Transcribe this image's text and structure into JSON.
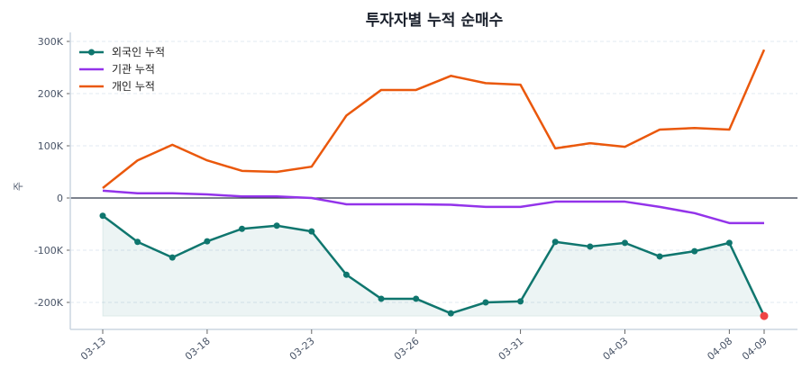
{
  "chart_data": {
    "type": "line",
    "title": "투자자별 누적 순매수",
    "xlabel": "",
    "ylabel": "주",
    "ylim": [
      -250000,
      310000
    ],
    "yticks": [
      -200000,
      -100000,
      0,
      100000,
      200000,
      300000
    ],
    "ytick_labels": [
      "-200K",
      "-100K",
      "0",
      "100K",
      "200K",
      "300K"
    ],
    "x_index": [
      0,
      1,
      2,
      3,
      4,
      5,
      6,
      7,
      8,
      9,
      10,
      11,
      12,
      13,
      14,
      15,
      16,
      17,
      18,
      19
    ],
    "xticks": [
      {
        "index": 0,
        "label": "03-13"
      },
      {
        "index": 3,
        "label": "03-18"
      },
      {
        "index": 6,
        "label": "03-23"
      },
      {
        "index": 9,
        "label": "03-26"
      },
      {
        "index": 12,
        "label": "03-31"
      },
      {
        "index": 15,
        "label": "04-03"
      },
      {
        "index": 18,
        "label": "04-08"
      },
      {
        "index": 19,
        "label": "04-09"
      }
    ],
    "grid": "horizontal-dashed",
    "legend_position": "top-left",
    "series": [
      {
        "name": "외국인 누적",
        "color": "#0f766e",
        "markers": true,
        "fill": true,
        "values": [
          -34000,
          -84000,
          -114000,
          -83000,
          -59000,
          -53000,
          -64000,
          -147000,
          -193000,
          -193000,
          -221000,
          -200000,
          -198000,
          -84000,
          -93000,
          -86000,
          -112000,
          -102000,
          -86000,
          -226000
        ]
      },
      {
        "name": "기관 누적",
        "color": "#9333ea",
        "markers": false,
        "values": [
          14000,
          9000,
          9000,
          7000,
          3000,
          3000,
          0,
          -12000,
          -12000,
          -12000,
          -13000,
          -17000,
          -17000,
          -7000,
          -7000,
          -7000,
          -17000,
          -29000,
          -48000,
          -48000
        ]
      },
      {
        "name": "개인 누적",
        "color": "#ea580c",
        "markers": false,
        "values": [
          19000,
          72000,
          102000,
          72000,
          52000,
          50000,
          60000,
          158000,
          207000,
          207000,
          234000,
          220000,
          217000,
          95000,
          105000,
          98000,
          131000,
          134000,
          131000,
          284000
        ]
      }
    ],
    "highlight_last_point_color": "#ef4444"
  }
}
